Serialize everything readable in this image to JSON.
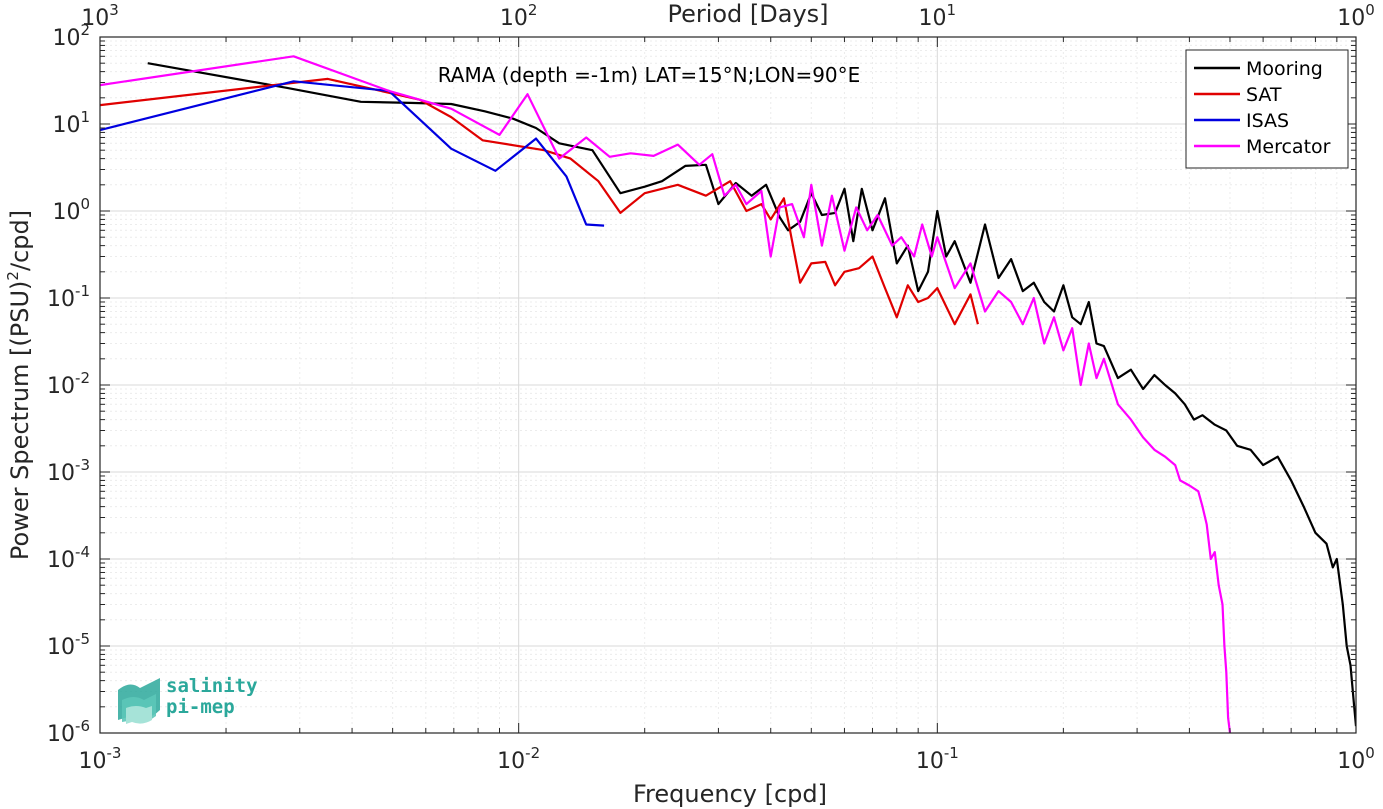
{
  "chart_data": {
    "type": "line",
    "title": "RAMA (depth =-1m) LAT=15°N;LON=90°E",
    "xlabel": "Frequency [cpd]",
    "ylabel_main": "Power Spectrum [(PSU)",
    "ylabel_sup": "2",
    "ylabel_tail": "/cpd]",
    "x2label": "Period [Days]",
    "xscale": "log",
    "yscale": "log",
    "xlim": [
      0.001,
      1
    ],
    "ylim": [
      1e-06,
      100
    ],
    "grid": true,
    "legend_position": "top-right",
    "x_ticks": [
      {
        "value": 0.001,
        "base": "10",
        "exp": "-3"
      },
      {
        "value": 0.01,
        "base": "10",
        "exp": "-2"
      },
      {
        "value": 0.1,
        "base": "10",
        "exp": "-1"
      },
      {
        "value": 1,
        "base": "10",
        "exp": "0"
      }
    ],
    "x2_ticks": [
      {
        "value": 0.001,
        "base": "10",
        "exp": "3"
      },
      {
        "value": 0.01,
        "base": "10",
        "exp": "2"
      },
      {
        "value": 0.1,
        "base": "10",
        "exp": "1"
      },
      {
        "value": 1,
        "base": "10",
        "exp": "0"
      }
    ],
    "y_ticks": [
      {
        "value": 100,
        "base": "10",
        "exp": "2"
      },
      {
        "value": 10,
        "base": "10",
        "exp": "1"
      },
      {
        "value": 1,
        "base": "10",
        "exp": "0"
      },
      {
        "value": 0.1,
        "base": "10",
        "exp": "-1"
      },
      {
        "value": 0.01,
        "base": "10",
        "exp": "-2"
      },
      {
        "value": 0.001,
        "base": "10",
        "exp": "-3"
      },
      {
        "value": 0.0001,
        "base": "10",
        "exp": "-4"
      },
      {
        "value": 1e-05,
        "base": "10",
        "exp": "-5"
      },
      {
        "value": 1e-06,
        "base": "10",
        "exp": "-6"
      }
    ],
    "series": [
      {
        "name": "Mooring",
        "color": "#000000",
        "points": [
          [
            0.0013,
            50
          ],
          [
            0.0028,
            26
          ],
          [
            0.0042,
            18
          ],
          [
            0.0055,
            17.5
          ],
          [
            0.0069,
            17
          ],
          [
            0.0083,
            14
          ],
          [
            0.0097,
            11.5
          ],
          [
            0.011,
            9
          ],
          [
            0.0125,
            6
          ],
          [
            0.015,
            5
          ],
          [
            0.0175,
            1.6
          ],
          [
            0.02,
            1.9
          ],
          [
            0.022,
            2.2
          ],
          [
            0.025,
            3.3
          ],
          [
            0.028,
            3.4
          ],
          [
            0.03,
            1.2
          ],
          [
            0.033,
            2.1
          ],
          [
            0.036,
            1.5
          ],
          [
            0.039,
            2.0
          ],
          [
            0.042,
            0.85
          ],
          [
            0.044,
            0.6
          ],
          [
            0.047,
            0.75
          ],
          [
            0.05,
            1.6
          ],
          [
            0.053,
            0.9
          ],
          [
            0.057,
            0.95
          ],
          [
            0.06,
            1.8
          ],
          [
            0.063,
            0.45
          ],
          [
            0.066,
            1.8
          ],
          [
            0.07,
            0.6
          ],
          [
            0.075,
            1.4
          ],
          [
            0.08,
            0.25
          ],
          [
            0.085,
            0.4
          ],
          [
            0.09,
            0.12
          ],
          [
            0.095,
            0.2
          ],
          [
            0.1,
            1.0
          ],
          [
            0.105,
            0.3
          ],
          [
            0.11,
            0.45
          ],
          [
            0.12,
            0.15
          ],
          [
            0.13,
            0.7
          ],
          [
            0.14,
            0.17
          ],
          [
            0.15,
            0.28
          ],
          [
            0.16,
            0.12
          ],
          [
            0.17,
            0.15
          ],
          [
            0.18,
            0.09
          ],
          [
            0.19,
            0.07
          ],
          [
            0.2,
            0.14
          ],
          [
            0.21,
            0.06
          ],
          [
            0.22,
            0.05
          ],
          [
            0.23,
            0.09
          ],
          [
            0.24,
            0.03
          ],
          [
            0.25,
            0.028
          ],
          [
            0.27,
            0.012
          ],
          [
            0.29,
            0.015
          ],
          [
            0.31,
            0.009
          ],
          [
            0.33,
            0.013
          ],
          [
            0.35,
            0.01
          ],
          [
            0.37,
            0.008
          ],
          [
            0.39,
            0.006
          ],
          [
            0.41,
            0.004
          ],
          [
            0.43,
            0.0045
          ],
          [
            0.46,
            0.0035
          ],
          [
            0.49,
            0.003
          ],
          [
            0.52,
            0.002
          ],
          [
            0.56,
            0.0018
          ],
          [
            0.6,
            0.0012
          ],
          [
            0.65,
            0.0015
          ],
          [
            0.7,
            0.0008
          ],
          [
            0.75,
            0.0004
          ],
          [
            0.8,
            0.0002
          ],
          [
            0.85,
            0.00015
          ],
          [
            0.88,
            8e-05
          ],
          [
            0.9,
            0.0001
          ],
          [
            0.93,
            3e-05
          ],
          [
            0.95,
            1e-05
          ],
          [
            0.97,
            6e-06
          ],
          [
            0.99,
            2e-06
          ],
          [
            1.0,
            1.2e-06
          ]
        ]
      },
      {
        "name": "SAT",
        "color": "#e00000",
        "points": [
          [
            0.001,
            16.5
          ],
          [
            0.0035,
            33
          ],
          [
            0.0058,
            19
          ],
          [
            0.0069,
            12
          ],
          [
            0.0082,
            6.5
          ],
          [
            0.0115,
            5.0
          ],
          [
            0.0133,
            4.0
          ],
          [
            0.0155,
            2.2
          ],
          [
            0.0175,
            0.95
          ],
          [
            0.02,
            1.6
          ],
          [
            0.024,
            2.0
          ],
          [
            0.028,
            1.5
          ],
          [
            0.032,
            2.2
          ],
          [
            0.035,
            1.0
          ],
          [
            0.038,
            1.2
          ],
          [
            0.04,
            0.8
          ],
          [
            0.043,
            1.4
          ],
          [
            0.045,
            0.45
          ],
          [
            0.047,
            0.15
          ],
          [
            0.05,
            0.25
          ],
          [
            0.054,
            0.26
          ],
          [
            0.057,
            0.14
          ],
          [
            0.06,
            0.2
          ],
          [
            0.065,
            0.22
          ],
          [
            0.07,
            0.3
          ],
          [
            0.075,
            0.13
          ],
          [
            0.08,
            0.06
          ],
          [
            0.085,
            0.14
          ],
          [
            0.09,
            0.09
          ],
          [
            0.095,
            0.1
          ],
          [
            0.1,
            0.13
          ],
          [
            0.11,
            0.05
          ],
          [
            0.12,
            0.11
          ],
          [
            0.125,
            0.05
          ]
        ]
      },
      {
        "name": "ISAS",
        "color": "#0000e0",
        "points": [
          [
            0.001,
            8.5
          ],
          [
            0.0029,
            31
          ],
          [
            0.0049,
            24
          ],
          [
            0.0069,
            5.2
          ],
          [
            0.0088,
            2.9
          ],
          [
            0.011,
            6.8
          ],
          [
            0.013,
            2.5
          ],
          [
            0.0145,
            0.7
          ],
          [
            0.016,
            0.68
          ]
        ]
      },
      {
        "name": "Mercator",
        "color": "#ff00ff",
        "points": [
          [
            0.001,
            28
          ],
          [
            0.0029,
            60
          ],
          [
            0.0049,
            24
          ],
          [
            0.0069,
            15
          ],
          [
            0.009,
            7.5
          ],
          [
            0.0105,
            22
          ],
          [
            0.0125,
            4.0
          ],
          [
            0.0145,
            7.0
          ],
          [
            0.0165,
            4.2
          ],
          [
            0.0185,
            4.6
          ],
          [
            0.021,
            4.3
          ],
          [
            0.024,
            5.8
          ],
          [
            0.027,
            3.4
          ],
          [
            0.029,
            4.5
          ],
          [
            0.031,
            1.5
          ],
          [
            0.033,
            2.0
          ],
          [
            0.035,
            1.2
          ],
          [
            0.038,
            1.7
          ],
          [
            0.04,
            0.3
          ],
          [
            0.042,
            1.1
          ],
          [
            0.045,
            1.2
          ],
          [
            0.048,
            0.5
          ],
          [
            0.05,
            2.0
          ],
          [
            0.053,
            0.4
          ],
          [
            0.056,
            1.5
          ],
          [
            0.06,
            0.35
          ],
          [
            0.064,
            1.1
          ],
          [
            0.068,
            0.6
          ],
          [
            0.072,
            0.9
          ],
          [
            0.078,
            0.4
          ],
          [
            0.082,
            0.5
          ],
          [
            0.088,
            0.3
          ],
          [
            0.092,
            0.7
          ],
          [
            0.097,
            0.3
          ],
          [
            0.1,
            0.5
          ],
          [
            0.11,
            0.13
          ],
          [
            0.12,
            0.25
          ],
          [
            0.13,
            0.07
          ],
          [
            0.14,
            0.12
          ],
          [
            0.15,
            0.09
          ],
          [
            0.16,
            0.05
          ],
          [
            0.17,
            0.1
          ],
          [
            0.18,
            0.03
          ],
          [
            0.19,
            0.06
          ],
          [
            0.2,
            0.025
          ],
          [
            0.21,
            0.045
          ],
          [
            0.22,
            0.01
          ],
          [
            0.23,
            0.03
          ],
          [
            0.24,
            0.012
          ],
          [
            0.25,
            0.02
          ],
          [
            0.27,
            0.006
          ],
          [
            0.29,
            0.004
          ],
          [
            0.31,
            0.0025
          ],
          [
            0.33,
            0.0018
          ],
          [
            0.35,
            0.0015
          ],
          [
            0.37,
            0.0012
          ],
          [
            0.38,
            0.0008
          ],
          [
            0.4,
            0.0007
          ],
          [
            0.42,
            0.0006
          ],
          [
            0.43,
            0.0004
          ],
          [
            0.44,
            0.00025
          ],
          [
            0.45,
            0.0001
          ],
          [
            0.46,
            0.00012
          ],
          [
            0.47,
            5e-05
          ],
          [
            0.48,
            3e-05
          ],
          [
            0.485,
            1e-05
          ],
          [
            0.49,
            5e-06
          ],
          [
            0.495,
            1.5e-06
          ],
          [
            0.5,
            1e-06
          ]
        ]
      }
    ]
  },
  "logo": {
    "line1": "salinity",
    "line2": "pi-mep",
    "color": "#2ba89b"
  }
}
